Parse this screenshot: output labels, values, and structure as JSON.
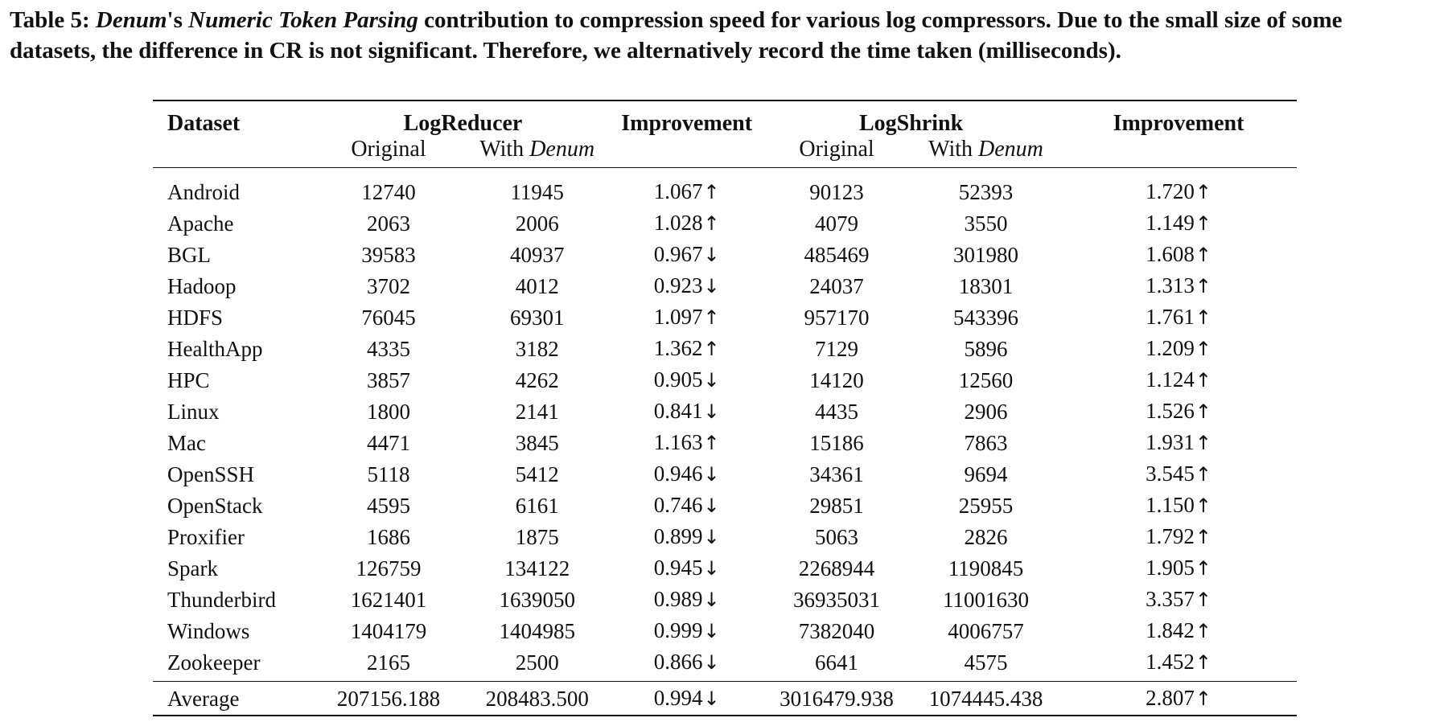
{
  "caption": {
    "label": "Table 5:",
    "system": "Denum",
    "possessive": "'s",
    "feature": "Numeric Token Parsing",
    "text": "contribution to compression speed for various log compressors. Due to the small size of some datasets, the difference in CR is not significant. Therefore, we alternatively record the time taken (milliseconds)."
  },
  "header": {
    "dataset": "Dataset",
    "group1": "LogReducer",
    "group2": "LogShrink",
    "improvement": "Improvement",
    "original": "Original",
    "with": "With",
    "denum": "Denum"
  },
  "arrows": {
    "up": "↑",
    "down": "↓"
  },
  "rows": [
    {
      "dataset": "Android",
      "lr_orig": "12740",
      "lr_denum": "11945",
      "lr_imp": "1.067",
      "lr_dir": "up",
      "ls_orig": "90123",
      "ls_denum": "52393",
      "ls_imp": "1.720",
      "ls_dir": "up"
    },
    {
      "dataset": "Apache",
      "lr_orig": "2063",
      "lr_denum": "2006",
      "lr_imp": "1.028",
      "lr_dir": "up",
      "ls_orig": "4079",
      "ls_denum": "3550",
      "ls_imp": "1.149",
      "ls_dir": "up"
    },
    {
      "dataset": "BGL",
      "lr_orig": "39583",
      "lr_denum": "40937",
      "lr_imp": "0.967",
      "lr_dir": "down",
      "ls_orig": "485469",
      "ls_denum": "301980",
      "ls_imp": "1.608",
      "ls_dir": "up"
    },
    {
      "dataset": "Hadoop",
      "lr_orig": "3702",
      "lr_denum": "4012",
      "lr_imp": "0.923",
      "lr_dir": "down",
      "ls_orig": "24037",
      "ls_denum": "18301",
      "ls_imp": "1.313",
      "ls_dir": "up"
    },
    {
      "dataset": "HDFS",
      "lr_orig": "76045",
      "lr_denum": "69301",
      "lr_imp": "1.097",
      "lr_dir": "up",
      "ls_orig": "957170",
      "ls_denum": "543396",
      "ls_imp": "1.761",
      "ls_dir": "up"
    },
    {
      "dataset": "HealthApp",
      "lr_orig": "4335",
      "lr_denum": "3182",
      "lr_imp": "1.362",
      "lr_dir": "up",
      "ls_orig": "7129",
      "ls_denum": "5896",
      "ls_imp": "1.209",
      "ls_dir": "up"
    },
    {
      "dataset": "HPC",
      "lr_orig": "3857",
      "lr_denum": "4262",
      "lr_imp": "0.905",
      "lr_dir": "down",
      "ls_orig": "14120",
      "ls_denum": "12560",
      "ls_imp": "1.124",
      "ls_dir": "up"
    },
    {
      "dataset": "Linux",
      "lr_orig": "1800",
      "lr_denum": "2141",
      "lr_imp": "0.841",
      "lr_dir": "down",
      "ls_orig": "4435",
      "ls_denum": "2906",
      "ls_imp": "1.526",
      "ls_dir": "up"
    },
    {
      "dataset": "Mac",
      "lr_orig": "4471",
      "lr_denum": "3845",
      "lr_imp": "1.163",
      "lr_dir": "up",
      "ls_orig": "15186",
      "ls_denum": "7863",
      "ls_imp": "1.931",
      "ls_dir": "up"
    },
    {
      "dataset": "OpenSSH",
      "lr_orig": "5118",
      "lr_denum": "5412",
      "lr_imp": "0.946",
      "lr_dir": "down",
      "ls_orig": "34361",
      "ls_denum": "9694",
      "ls_imp": "3.545",
      "ls_dir": "up"
    },
    {
      "dataset": "OpenStack",
      "lr_orig": "4595",
      "lr_denum": "6161",
      "lr_imp": "0.746",
      "lr_dir": "down",
      "ls_orig": "29851",
      "ls_denum": "25955",
      "ls_imp": "1.150",
      "ls_dir": "up"
    },
    {
      "dataset": "Proxifier",
      "lr_orig": "1686",
      "lr_denum": "1875",
      "lr_imp": "0.899",
      "lr_dir": "down",
      "ls_orig": "5063",
      "ls_denum": "2826",
      "ls_imp": "1.792",
      "ls_dir": "up"
    },
    {
      "dataset": "Spark",
      "lr_orig": "126759",
      "lr_denum": "134122",
      "lr_imp": "0.945",
      "lr_dir": "down",
      "ls_orig": "2268944",
      "ls_denum": "1190845",
      "ls_imp": "1.905",
      "ls_dir": "up"
    },
    {
      "dataset": "Thunderbird",
      "lr_orig": "1621401",
      "lr_denum": "1639050",
      "lr_imp": "0.989",
      "lr_dir": "down",
      "ls_orig": "36935031",
      "ls_denum": "11001630",
      "ls_imp": "3.357",
      "ls_dir": "up"
    },
    {
      "dataset": "Windows",
      "lr_orig": "1404179",
      "lr_denum": "1404985",
      "lr_imp": "0.999",
      "lr_dir": "down",
      "ls_orig": "7382040",
      "ls_denum": "4006757",
      "ls_imp": "1.842",
      "ls_dir": "up"
    },
    {
      "dataset": "Zookeeper",
      "lr_orig": "2165",
      "lr_denum": "2500",
      "lr_imp": "0.866",
      "lr_dir": "down",
      "ls_orig": "6641",
      "ls_denum": "4575",
      "ls_imp": "1.452",
      "ls_dir": "up"
    }
  ],
  "average": {
    "dataset": "Average",
    "lr_orig": "207156.188",
    "lr_denum": "208483.500",
    "lr_imp": "0.994",
    "lr_dir": "down",
    "ls_orig": "3016479.938",
    "ls_denum": "1074445.438",
    "ls_imp": "2.807",
    "ls_dir": "up"
  }
}
